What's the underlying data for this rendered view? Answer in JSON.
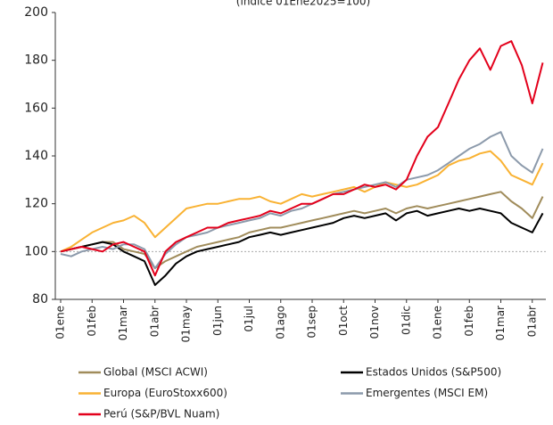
{
  "chart_data": {
    "type": "line",
    "subtitle": "(índice 01Ene2025=100)",
    "categories": [
      "01ene",
      null,
      null,
      "01feb",
      null,
      null,
      "01mar",
      null,
      null,
      "01abr",
      null,
      null,
      "01may",
      null,
      null,
      "01jun",
      null,
      null,
      "01jul",
      null,
      null,
      "01ago",
      null,
      null,
      "01sep",
      null,
      null,
      "01oct",
      null,
      null,
      "01nov",
      null,
      null,
      "01dic",
      null,
      null,
      "01ene",
      null,
      null,
      "01feb",
      null,
      null,
      "01mar",
      null,
      null,
      "01abr",
      null
    ],
    "series": [
      {
        "name": "Global (MSCI ACWI)",
        "color": "#a08c5b",
        "values": [
          100,
          101,
          102,
          103,
          104,
          104,
          101,
          100,
          99,
          93,
          96,
          98,
          100,
          102,
          103,
          104,
          105,
          106,
          108,
          109,
          110,
          110,
          111,
          112,
          113,
          114,
          115,
          116,
          117,
          116,
          117,
          118,
          116,
          118,
          119,
          118,
          119,
          120,
          121,
          122,
          123,
          124,
          125,
          121,
          118,
          114,
          123
        ]
      },
      {
        "name": "Estados Unidos (S&P500)",
        "color": "#000000",
        "values": [
          100,
          101,
          102,
          103,
          104,
          103,
          100,
          98,
          96,
          86,
          90,
          95,
          98,
          100,
          101,
          102,
          103,
          104,
          106,
          107,
          108,
          107,
          108,
          109,
          110,
          111,
          112,
          114,
          115,
          114,
          115,
          116,
          113,
          116,
          117,
          115,
          116,
          117,
          118,
          117,
          118,
          117,
          116,
          112,
          110,
          108,
          116
        ]
      },
      {
        "name": "Europa (EuroStoxx600)",
        "color": "#f9b233",
        "values": [
          100,
          102,
          105,
          108,
          110,
          112,
          113,
          115,
          112,
          106,
          110,
          114,
          118,
          119,
          120,
          120,
          121,
          122,
          122,
          123,
          121,
          120,
          122,
          124,
          123,
          124,
          125,
          126,
          127,
          125,
          127,
          129,
          128,
          127,
          128,
          130,
          132,
          136,
          138,
          139,
          141,
          142,
          138,
          132,
          130,
          128,
          137
        ]
      },
      {
        "name": "Emergentes (MSCI EM)",
        "color": "#8c9aab",
        "values": [
          99,
          98,
          100,
          101,
          102,
          101,
          103,
          103,
          101,
          93,
          99,
          103,
          106,
          107,
          108,
          110,
          111,
          112,
          113,
          114,
          116,
          115,
          117,
          118,
          120,
          122,
          124,
          125,
          126,
          127,
          128,
          129,
          127,
          130,
          131,
          132,
          134,
          137,
          140,
          143,
          145,
          148,
          150,
          140,
          136,
          133,
          143
        ]
      },
      {
        "name": "Perú (S&P/BVL Nuam)",
        "color": "#e3001b",
        "values": [
          100,
          101,
          102,
          101,
          100,
          103,
          104,
          102,
          100,
          90,
          100,
          104,
          106,
          108,
          110,
          110,
          112,
          113,
          114,
          115,
          117,
          116,
          118,
          120,
          120,
          122,
          124,
          124,
          126,
          128,
          127,
          128,
          126,
          130,
          140,
          148,
          152,
          162,
          172,
          180,
          185,
          176,
          186,
          188,
          178,
          162,
          179
        ]
      }
    ],
    "ylim": [
      80,
      200
    ],
    "yticks": [
      80,
      100,
      120,
      140,
      160,
      180,
      200
    ],
    "reference_line": 100
  }
}
